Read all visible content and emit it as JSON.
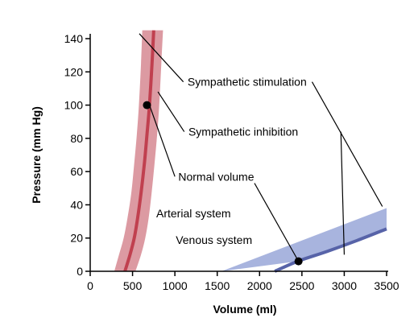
{
  "chart_data": {
    "type": "line",
    "title": "",
    "xlabel": "Volume (ml)",
    "ylabel": "Pressure (mm Hg)",
    "xlim": [
      0,
      3500
    ],
    "ylim": [
      0,
      145
    ],
    "x_ticks": [
      0,
      500,
      1000,
      1500,
      2000,
      2500,
      3000,
      3500
    ],
    "y_ticks": [
      0,
      20,
      40,
      60,
      80,
      100,
      120,
      140
    ],
    "grid": false,
    "legend": "none",
    "series": [
      {
        "name": "Arterial system",
        "color": "#c0404f",
        "band_color": "#dc9aa2",
        "x": [
          410,
          470,
          520,
          560,
          600,
          640,
          670,
          700,
          730,
          750
        ],
        "y": [
          0,
          10,
          20,
          32,
          47,
          65,
          82,
          100,
          125,
          145
        ],
        "band_lower_x": [
          285,
          340,
          395,
          440,
          485,
          520,
          550,
          575,
          600,
          615
        ],
        "band_upper_x": [
          535,
          600,
          650,
          690,
          725,
          760,
          790,
          815,
          840,
          860
        ],
        "band_y": [
          0,
          10,
          20,
          32,
          47,
          65,
          82,
          100,
          125,
          145
        ]
      },
      {
        "name": "Venous system",
        "color": "#5763a8",
        "band_color": "#a8b4de",
        "x": [
          2180,
          2450,
          2800,
          3150,
          3500
        ],
        "y": [
          0,
          6,
          12,
          18.5,
          25.5
        ],
        "band_lower": [
          0,
          6,
          12,
          18.5,
          25.5
        ],
        "band_lower_x": [
          1550,
          2450,
          2800,
          3150,
          3500
        ],
        "band_upper": [
          14,
          19,
          25,
          31,
          38
        ]
      }
    ],
    "points": [
      {
        "name": "arterial-normal-volume-point",
        "x": 670,
        "y": 100
      },
      {
        "name": "venous-normal-volume-point",
        "x": 2460,
        "y": 6
      }
    ],
    "annotations": [
      {
        "name": "sympathetic-stimulation",
        "text": "Sympathetic stimulation",
        "text_at": [
          1150,
          114
        ],
        "lines": [
          [
            [
              1100,
              114
            ],
            [
              580,
              143
            ]
          ],
          [
            [
              2620,
              114
            ],
            [
              3450,
              39
            ]
          ]
        ]
      },
      {
        "name": "sympathetic-inhibition",
        "text": "Sympathetic inhibition",
        "text_at": [
          1160,
          84
        ],
        "lines": [
          [
            [
              1110,
              84
            ],
            [
              800,
              108
            ]
          ],
          [
            [
              2960,
              84
            ],
            [
              3000,
              10
            ]
          ]
        ]
      },
      {
        "name": "normal-volume",
        "text": "Normal volume",
        "text_at": [
          1040,
          57
        ],
        "lines": [
          [
            [
              1000,
              57
            ],
            [
              700,
              100
            ]
          ],
          [
            [
              1940,
              53
            ],
            [
              2460,
              6
            ]
          ]
        ]
      }
    ],
    "series_labels": [
      {
        "name": "arterial-system-label",
        "text": "Arterial system",
        "color": "#c0404f",
        "at": [
          780,
          35
        ]
      },
      {
        "name": "venous-system-label",
        "text": "Venous system",
        "color": "#5763a8",
        "at": [
          1010,
          19
        ]
      }
    ]
  }
}
